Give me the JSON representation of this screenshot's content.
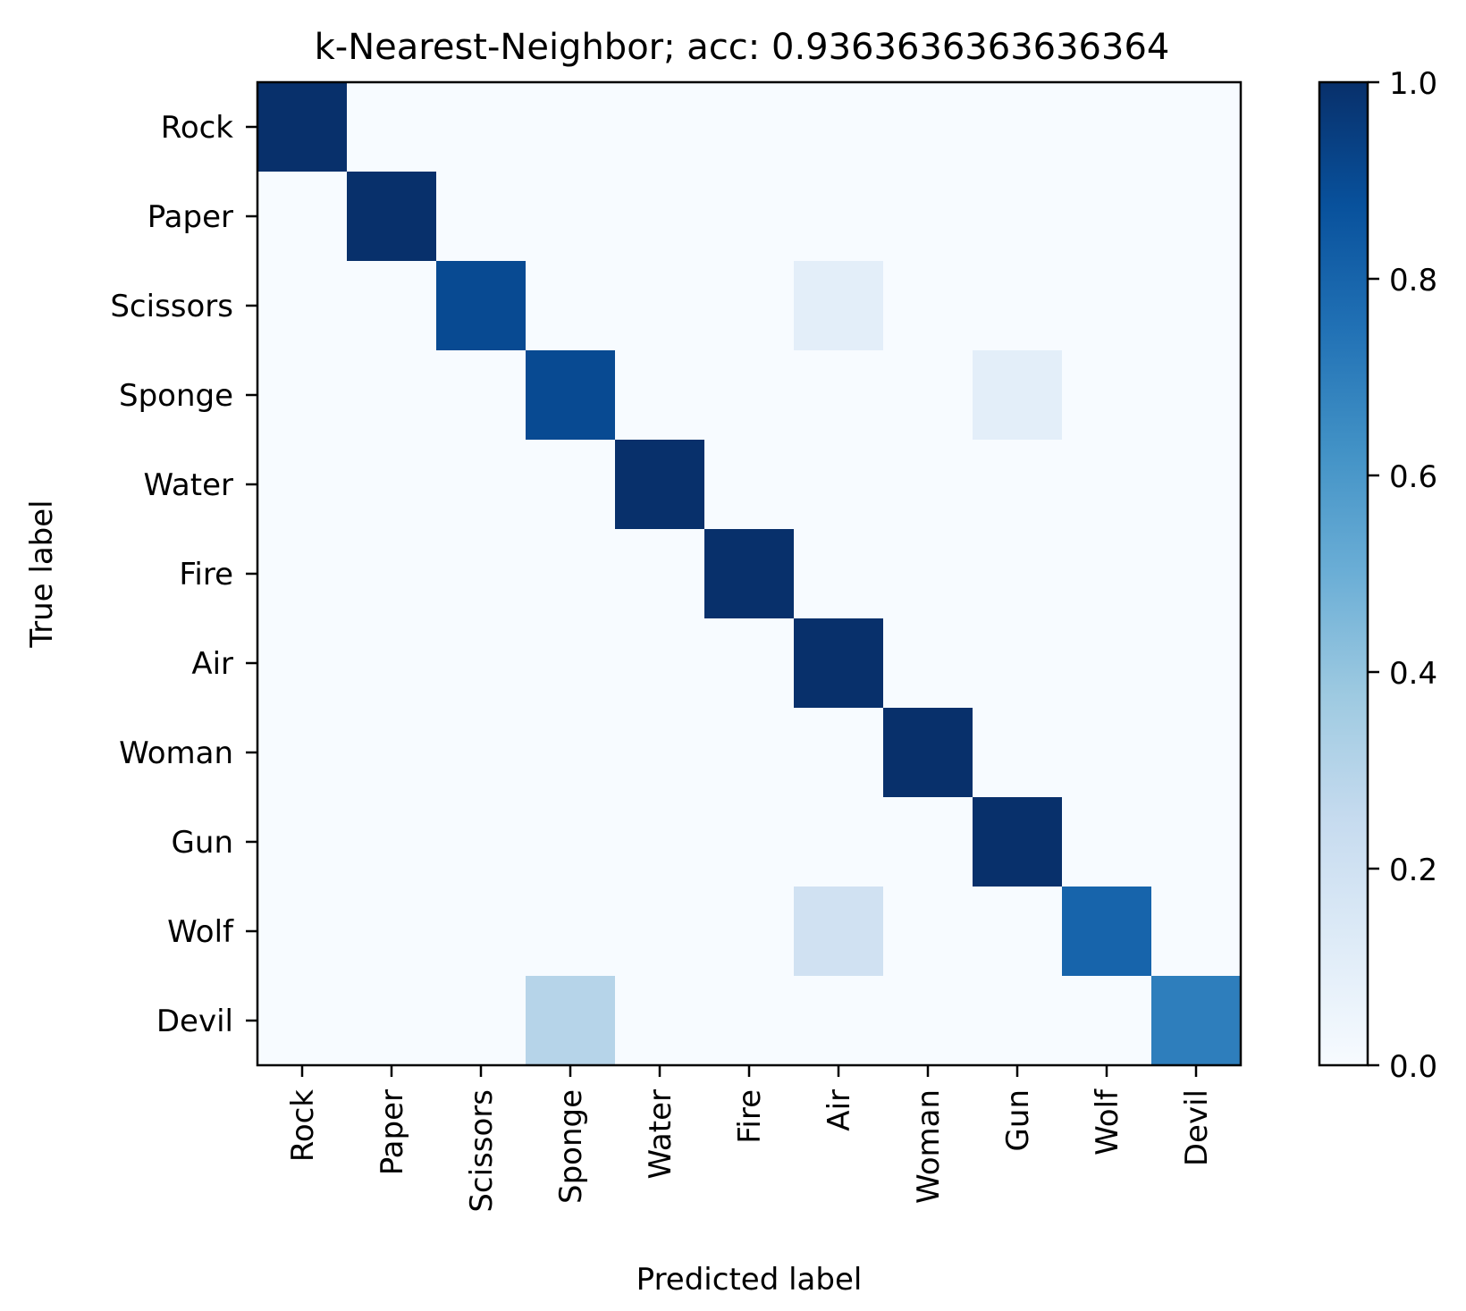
{
  "chart_data": {
    "type": "heatmap",
    "title": "k-Nearest-Neighbor; acc: 0.9363636363636364",
    "xlabel": "Predicted label",
    "ylabel": "True label",
    "x_categories": [
      "Rock",
      "Paper",
      "Scissors",
      "Sponge",
      "Water",
      "Fire",
      "Air",
      "Woman",
      "Gun",
      "Wolf",
      "Devil"
    ],
    "y_categories": [
      "Rock",
      "Paper",
      "Scissors",
      "Sponge",
      "Water",
      "Fire",
      "Air",
      "Woman",
      "Gun",
      "Wolf",
      "Devil"
    ],
    "values": [
      [
        1.0,
        0,
        0,
        0,
        0,
        0,
        0,
        0,
        0,
        0,
        0
      ],
      [
        0,
        1.0,
        0,
        0,
        0,
        0,
        0,
        0,
        0,
        0,
        0
      ],
      [
        0,
        0,
        0.9,
        0,
        0,
        0,
        0.1,
        0,
        0,
        0,
        0
      ],
      [
        0,
        0,
        0,
        0.9,
        0,
        0,
        0,
        0,
        0.1,
        0,
        0
      ],
      [
        0,
        0,
        0,
        0,
        1.0,
        0,
        0,
        0,
        0,
        0,
        0
      ],
      [
        0,
        0,
        0,
        0,
        0,
        1.0,
        0,
        0,
        0,
        0,
        0
      ],
      [
        0,
        0,
        0,
        0,
        0,
        0,
        1.0,
        0,
        0,
        0,
        0
      ],
      [
        0,
        0,
        0,
        0,
        0,
        0,
        0,
        1.0,
        0,
        0,
        0
      ],
      [
        0,
        0,
        0,
        0,
        0,
        0,
        0,
        0,
        1.0,
        0,
        0
      ],
      [
        0,
        0,
        0,
        0,
        0,
        0,
        0.2,
        0,
        0,
        0.8,
        0
      ],
      [
        0,
        0,
        0,
        0.3,
        0,
        0,
        0,
        0,
        0,
        0,
        0.7
      ]
    ],
    "colormap": "Blues",
    "colorbar": {
      "range": [
        0.0,
        1.0
      ],
      "ticks": [
        0.0,
        0.2,
        0.4,
        0.6,
        0.8,
        1.0
      ],
      "tick_labels": [
        "0.0",
        "0.2",
        "0.4",
        "0.6",
        "0.8",
        "1.0"
      ],
      "position": "right"
    },
    "grid": false
  }
}
